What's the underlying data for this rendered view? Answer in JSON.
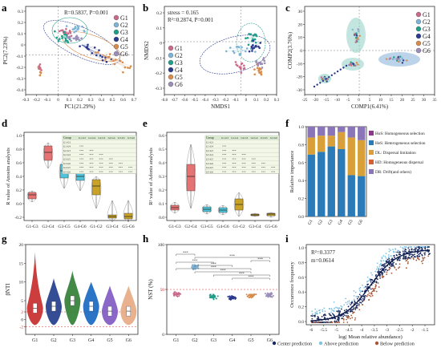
{
  "figure": {
    "panel_letters": [
      "a",
      "b",
      "c",
      "d",
      "e",
      "f",
      "g",
      "h",
      "i"
    ],
    "groups": [
      "G1",
      "G2",
      "G3",
      "G4",
      "G5",
      "G6"
    ],
    "group_colors": [
      "#c96a8a",
      "#7fb3d5",
      "#1f9e89",
      "#2b3a8f",
      "#d98c4a",
      "#9b8fb8"
    ],
    "pairs": [
      "G1-G3",
      "G2-G4",
      "G3-G5",
      "G4-G6",
      "G1-G2",
      "G3-G4",
      "G5-G6"
    ]
  },
  "chart_data": [
    {
      "panel": "a",
      "type": "scatter",
      "xlabel": "PC1(21.29%)",
      "ylabel": "PC2(7.23%)",
      "xticks": [
        "-0.3",
        "-0.2",
        "-0.1",
        "0",
        "0.1",
        "0.2",
        "0.3",
        "0.4",
        "0.5",
        "0.6",
        "0.7"
      ],
      "yticks": [
        "0.3",
        "0.2",
        "0.1",
        "0",
        "-0.1",
        "-0.2",
        "-0.3",
        "-0.4"
      ],
      "annotation": "R=0.5837, P=0.001"
    },
    {
      "panel": "b",
      "type": "scatter",
      "xlabel": "NMDS1",
      "ylabel": "NMDS2",
      "xticks": [
        "-0.8",
        "-0.7",
        "-0.6",
        "-0.5",
        "-0.4",
        "-0.3",
        "-0.2",
        "-0.1",
        "0",
        "0.1",
        "0.2",
        "0.3"
      ],
      "yticks": [
        "0.2",
        "0.1",
        "0",
        "-0.1",
        "-0.2",
        "-0.3"
      ],
      "annotation_line1": "stress = 0.165",
      "annotation_line2": "R²=0.2874, P=0.001"
    },
    {
      "panel": "c",
      "type": "scatter",
      "xlabel": "COMP1(6.41%)",
      "ylabel": "COMP2(3.76%)",
      "xticks": [
        "-25",
        "-20",
        "-15",
        "-10",
        "-5",
        "0",
        "5",
        "10",
        "15",
        "20",
        "25",
        "30",
        "35"
      ],
      "yticks": [
        "30",
        "20",
        "10",
        "0",
        "-10",
        "-20",
        "-30"
      ]
    },
    {
      "panel": "d",
      "type": "bar",
      "ylabel": "R value of Anosim analysis",
      "categories": [
        "G1-G3",
        "G2-G4",
        "G3-G5",
        "G4-G6",
        "G1-G2",
        "G3-G4",
        "G5-G6"
      ],
      "values": [
        0.35,
        0.75,
        0.5,
        0.38,
        0.27,
        0.06,
        0.07
      ],
      "ylim": [
        -0.2,
        1.0
      ],
      "yticks": [
        "1.0",
        "0.8",
        "0.6",
        "0.4",
        "0.2",
        "0.0",
        "-0.2"
      ],
      "table_header": "Group",
      "table_cols": [
        "G1-G3",
        "G1-G4",
        "G2-G3",
        "G2-G4",
        "G3-G5",
        "G3-G6"
      ],
      "table_rows": [
        "G1-G3",
        "G1-G4",
        "G2-G3",
        "G2-G4",
        "G3-G5",
        "G3-G6",
        "G4-G5",
        "G5-G6"
      ]
    },
    {
      "panel": "e",
      "type": "bar",
      "ylabel": "R² value of Adonis analysis",
      "categories": [
        "G1-G3",
        "G2-G4",
        "G3-G5",
        "G4-G6",
        "G1-G2",
        "G3-G4",
        "G5-G6"
      ],
      "values": [
        0.1,
        0.27,
        0.1,
        0.08,
        0.12,
        0.02,
        0.03
      ],
      "ylim": [
        0.0,
        0.6
      ],
      "yticks": [
        "0.6",
        "0.5",
        "0.4",
        "0.3",
        "0.2",
        "0.1",
        "0.0"
      ],
      "table_header": "Group",
      "table_cols": [
        "G1-G3",
        "G1-G4",
        "G2-G3",
        "G2-G4",
        "G3-G5",
        "G3-G6"
      ],
      "table_rows": [
        "G1-G3",
        "G1-G4",
        "G2-G3",
        "G2-G4",
        "G3-G5",
        "G3-G6",
        "G4-G5",
        "G5-G6"
      ]
    },
    {
      "panel": "f",
      "type": "bar",
      "ylabel": "Relative importance",
      "categories": [
        "G1",
        "G2",
        "G3",
        "G4",
        "G5",
        "G6"
      ],
      "yticks": [
        "1.0",
        "0.8",
        "0.6",
        "0.4",
        "0.2",
        "0.0"
      ],
      "series": [
        {
          "name": "HeS: Heterogeneous selection",
          "values": [
            0.69,
            0.72,
            0.78,
            0.75,
            0.46,
            0.45
          ]
        },
        {
          "name": "HoS: Homogeneous selection",
          "values": [
            0.0,
            0.0,
            0.0,
            0.0,
            0.0,
            0.0
          ]
        },
        {
          "name": "DL: Dispersal limitation",
          "values": [
            0.19,
            0.18,
            0.12,
            0.19,
            0.42,
            0.4
          ]
        },
        {
          "name": "HD: Homogeneous dispersal",
          "values": [
            0.0,
            0.0,
            0.0,
            0.0,
            0.0,
            0.0
          ]
        },
        {
          "name": "DR: Drift(and others)",
          "values": [
            0.12,
            0.1,
            0.1,
            0.06,
            0.12,
            0.15
          ]
        }
      ],
      "legend": [
        {
          "text": "HoS: Homogeneous selection",
          "color": "#8b3a8b"
        },
        {
          "text": "HeS: Heterogeneous selection",
          "color": "#2b7bb9"
        },
        {
          "text": "DL: Dispersal limitation",
          "color": "#d9a03a"
        },
        {
          "text": "HD: Homogeneous dispersal",
          "color": "#d65f3a"
        },
        {
          "text": "DR: Drift(and others)",
          "color": "#8a75b8"
        }
      ]
    },
    {
      "panel": "g",
      "type": "violin",
      "ylabel": "βNTI",
      "categories": [
        "G1",
        "G2",
        "G3",
        "G4",
        "G5",
        "G6"
      ],
      "ylim": [
        -4,
        20
      ],
      "yticks": [
        "20",
        "15",
        "10",
        "5",
        "2",
        "0",
        "-2"
      ],
      "medians": [
        3,
        3.5,
        5,
        3.5,
        2.2,
        2.2
      ]
    },
    {
      "panel": "h",
      "type": "scatter",
      "ylabel": "NST (%)",
      "categories": [
        "G1",
        "G2",
        "G3",
        "G4",
        "G5",
        "G6"
      ],
      "values": [
        45,
        75,
        42,
        41,
        43,
        44
      ],
      "ylim": [
        0,
        100
      ],
      "yticks": [
        "100",
        "50",
        "0"
      ],
      "sig_label": "***"
    },
    {
      "panel": "i",
      "type": "scatter",
      "xlabel": "log( Mean relative abundance)",
      "ylabel": "Occurrence frequency",
      "xticks": [
        "-6",
        "-5.5",
        "-5",
        "-4.5",
        "-4",
        "-3.5",
        "-3",
        "-2.5",
        "-2",
        "-1.5"
      ],
      "yticks": [
        "1.0",
        "0.8",
        "0.6",
        "0.4",
        "0.2",
        "0.0"
      ],
      "annotation_line1": "R²=0.3377",
      "annotation_line2": "m=0.0614",
      "legend": [
        {
          "text": "Center prediction",
          "color": "#1b2a5e"
        },
        {
          "text": "Above prediction",
          "color": "#7ec3e6"
        },
        {
          "text": "Below prediction",
          "color": "#a5593a"
        }
      ]
    }
  ]
}
